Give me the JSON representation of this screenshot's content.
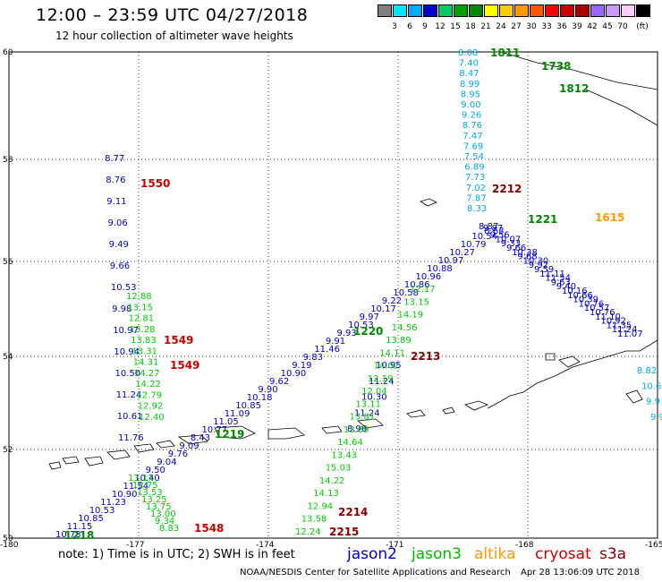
{
  "title": "12:00 – 23:59 UTC 04/27/2018",
  "subtitle": "12 hour collection of altimeter wave heights",
  "colorbar": {
    "colors": [
      "#7f7f7f",
      "#00e6ff",
      "#00aaff",
      "#0000cc",
      "#00cc66",
      "#00a000",
      "#008800",
      "#ffff00",
      "#ffcc00",
      "#ff9900",
      "#ff5500",
      "#ff0000",
      "#cc0000",
      "#aa0000",
      "#9966ff",
      "#cc99ff",
      "#ffccff",
      "#000000"
    ],
    "labels": [
      "3",
      "6",
      "9",
      "12",
      "15",
      "18",
      "21",
      "24",
      "27",
      "30",
      "33",
      "36",
      "39",
      "42",
      "45",
      "70"
    ],
    "unit": "(ft)"
  },
  "map": {
    "lon_ticks": [
      "-180",
      "-177",
      "-174",
      "-171",
      "-168",
      "-165"
    ],
    "lat_ticks": [
      "60",
      "58",
      "56",
      "54",
      "52",
      "50"
    ]
  },
  "labels": [
    {
      "t": "1550",
      "c": "#cc0000"
    },
    {
      "t": "1549",
      "c": "#cc0000"
    },
    {
      "t": "1549",
      "c": "#cc0000"
    },
    {
      "t": "1548",
      "c": "#cc0000"
    },
    {
      "t": "1220",
      "c": "#008800"
    },
    {
      "t": "1219",
      "c": "#008800"
    },
    {
      "t": "1218",
      "c": "#008800"
    },
    {
      "t": "1221",
      "c": "#008800"
    },
    {
      "t": "1811",
      "c": "#008800"
    },
    {
      "t": "1738",
      "c": "#008800"
    },
    {
      "t": "1812",
      "c": "#008800"
    },
    {
      "t": "1615",
      "c": "#ff9900"
    },
    {
      "t": "2212",
      "c": "#880000"
    },
    {
      "t": "2213",
      "c": "#880000"
    },
    {
      "t": "2214",
      "c": "#880000"
    },
    {
      "t": "2215",
      "c": "#880000"
    }
  ],
  "track_a": {
    "color": "#0000cc",
    "values": [
      "10.73",
      "11.15",
      "10.85",
      "10.53",
      "11.23",
      "10.90",
      "11.54",
      "10.40",
      "9.50",
      "9.04",
      "9.76",
      "9.09",
      "8.43",
      "10.77",
      "11.05",
      "11.09",
      "10.85",
      "10.18",
      "9.90",
      "9.62",
      "10.90",
      "9.19",
      "9.83",
      "11.46",
      "9.91",
      "9.93",
      "10.53",
      "9.97",
      "10.17",
      "9.22",
      "10.58",
      "10.86",
      "10.96",
      "10.88",
      "10.97",
      "10.27",
      "10.79",
      "10.54",
      "9.87"
    ]
  },
  "track_b": {
    "color": "#0000cc",
    "values": [
      "8.77",
      "8.76",
      "9.11",
      "9.06",
      "9.49",
      "9.66",
      "10.53",
      "9.98",
      "10.97",
      "10.94",
      "10.50",
      "11.24",
      "10.61",
      "11.76"
    ]
  },
  "track_b_green": {
    "color": "#00cc00",
    "values": [
      "12.88",
      "13.15",
      "12.81",
      "13.28",
      "13.83",
      "13.31",
      "14.31",
      "14.27",
      "14.22",
      "12.79",
      "12.92",
      "12.40"
    ]
  },
  "track_c": {
    "color": "#0000cc",
    "values": [
      "10.95",
      "11.24",
      "10.30",
      "11.24",
      "8.96"
    ]
  },
  "track_c_green": {
    "color": "#00cc00",
    "values": [
      "12.17",
      "13.15",
      "14.19",
      "14.56",
      "13.89",
      "14.11",
      "14.02",
      "12.19",
      "12.04",
      "13.11",
      "13.81",
      "13.69",
      "14.64",
      "13.43",
      "15.03",
      "14.22",
      "14.13",
      "12.94",
      "13.58",
      "12.24"
    ]
  },
  "track_d": {
    "color": "#00aaee",
    "values": [
      "8.33",
      "7.87",
      "7.02",
      "7.73",
      "6.89",
      "7.54",
      "7.69",
      "7.47",
      "8.76",
      "9.26",
      "9.00",
      "8.95",
      "8.99",
      "8.47",
      "7.40",
      "8.08"
    ]
  },
  "track_e": {
    "color": "#0000cc",
    "values": [
      "8.87",
      "8.63",
      "9.56",
      "10.07",
      "9.33",
      "9.66",
      "10.38",
      "9.68",
      "10.30",
      "9.92",
      "9.59",
      "11.11",
      "11.54",
      "9.63",
      "9.40",
      "10.16",
      "10.66",
      "10.39",
      "10.76",
      "10.57",
      "10.76",
      "11.10",
      "10.92",
      "11.35",
      "11.24",
      "11.07"
    ]
  },
  "track_f": {
    "color": "#00aaee",
    "values": [
      "8.82",
      "10.6",
      "9.9",
      "9.9"
    ]
  },
  "track_g": {
    "color": "#00cc00",
    "values": [
      "13.17",
      "12.75",
      "13.53",
      "13.25",
      "13.75",
      "13.00",
      "9.34",
      "8.83"
    ]
  },
  "footer": {
    "note": "note: 1) Time is in UTC; 2) SWH is in feet",
    "sats": [
      {
        "name": "jason2",
        "color": "#0000cc"
      },
      {
        "name": "jason3",
        "color": "#00bb00"
      },
      {
        "name": "altika",
        "color": "#ff9900"
      },
      {
        "name": "cryosat",
        "color": "#cc0000"
      },
      {
        "name": "s3a",
        "color": "#880000"
      }
    ],
    "credit": "NOAA/NESDIS Center for Satellite Applications and Research",
    "timestamp": "Apr 28 13:06:09 UTC 2018"
  }
}
